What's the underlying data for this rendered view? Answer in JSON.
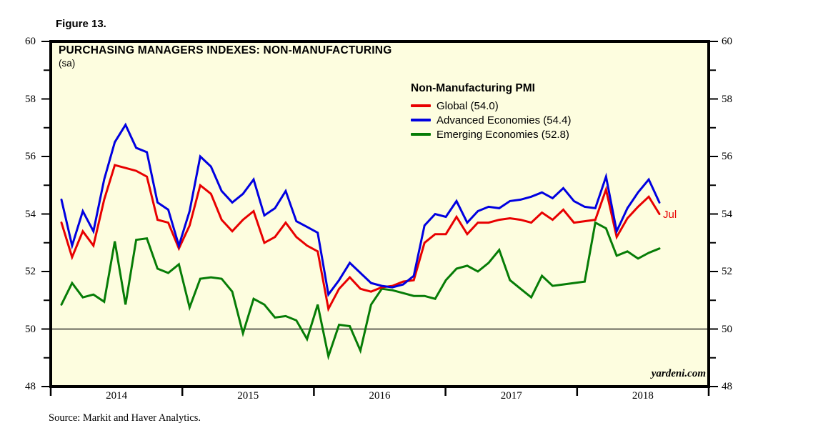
{
  "figure_label": "Figure 13.",
  "chart": {
    "title": "PURCHASING MANAGERS INDEXES: NON-MANUFACTURING",
    "subtitle": "(sa)",
    "watermark": "yardeni.com",
    "last_point_label": "Jul"
  },
  "legend": {
    "title": "Non-Manufacturing PMI",
    "items": [
      {
        "label": "Global (54.0)",
        "color": "#e80000"
      },
      {
        "label": "Advanced Economies (54.4)",
        "color": "#0000e0"
      },
      {
        "label": "Emerging Economies (52.8)",
        "color": "#067c06"
      }
    ]
  },
  "source": "Source:  Markit and Haver Analytics.",
  "chart_data": {
    "type": "line",
    "title": "PURCHASING MANAGERS INDEXES: NON-MANUFACTURING (sa)",
    "x_unit": "monthly",
    "x_range": "early 2014 through Jul 2018",
    "year_ticks": [
      "2014",
      "2015",
      "2016",
      "2017",
      "2018"
    ],
    "y_ticks_display": [
      60,
      58,
      56,
      54,
      52,
      50,
      48
    ],
    "ylim": [
      48,
      60
    ],
    "reference_line": 50,
    "grid": "single horizontal line at 50 only",
    "legend_position": "inside top-center",
    "plot_background": "#fdfddf",
    "series": [
      {
        "name": "Global",
        "latest_value": "54.0",
        "color": "#e80000",
        "values": [
          53.7,
          52.5,
          53.4,
          52.9,
          54.5,
          55.7,
          55.6,
          55.5,
          55.3,
          53.8,
          53.7,
          52.8,
          53.6,
          55.0,
          54.7,
          53.8,
          53.4,
          53.8,
          54.1,
          53.0,
          53.2,
          53.7,
          53.2,
          52.9,
          52.7,
          50.7,
          51.4,
          51.8,
          51.4,
          51.3,
          51.45,
          51.5,
          51.65,
          51.7,
          53.0,
          53.3,
          53.3,
          53.9,
          53.3,
          53.7,
          53.7,
          53.8,
          53.85,
          53.8,
          53.7,
          54.05,
          53.8,
          54.15,
          53.7,
          53.75,
          53.8,
          54.85,
          53.2,
          53.85,
          54.25,
          54.6,
          54.0
        ]
      },
      {
        "name": "Advanced Economies",
        "latest_value": "54.4",
        "color": "#0000e0",
        "values": [
          54.5,
          52.9,
          54.1,
          53.4,
          55.2,
          56.5,
          57.1,
          56.3,
          56.15,
          54.4,
          54.15,
          52.9,
          54.1,
          56.0,
          55.65,
          54.8,
          54.4,
          54.7,
          55.2,
          53.95,
          54.2,
          54.8,
          53.75,
          53.55,
          53.35,
          51.2,
          51.7,
          52.3,
          51.95,
          51.6,
          51.5,
          51.45,
          51.55,
          51.85,
          53.6,
          54.0,
          53.9,
          54.45,
          53.7,
          54.1,
          54.25,
          54.2,
          54.45,
          54.5,
          54.6,
          54.75,
          54.55,
          54.9,
          54.45,
          54.25,
          54.2,
          55.3,
          53.4,
          54.2,
          54.75,
          55.2,
          54.4
        ]
      },
      {
        "name": "Emerging Economies",
        "latest_value": "52.8",
        "color": "#067c06",
        "values": [
          50.85,
          51.6,
          51.1,
          51.2,
          50.95,
          53.05,
          50.85,
          53.1,
          53.15,
          52.1,
          51.95,
          52.25,
          50.75,
          51.75,
          51.8,
          51.75,
          51.3,
          49.85,
          51.05,
          50.85,
          50.4,
          50.45,
          50.3,
          49.65,
          50.85,
          49.05,
          50.15,
          50.1,
          49.25,
          50.85,
          51.4,
          51.35,
          51.25,
          51.15,
          51.15,
          51.05,
          51.7,
          52.1,
          52.2,
          52.0,
          52.3,
          52.75,
          51.7,
          51.4,
          51.1,
          51.85,
          51.5,
          51.55,
          51.6,
          51.65,
          53.7,
          53.5,
          52.55,
          52.7,
          52.45,
          52.65,
          52.8
        ]
      }
    ]
  }
}
